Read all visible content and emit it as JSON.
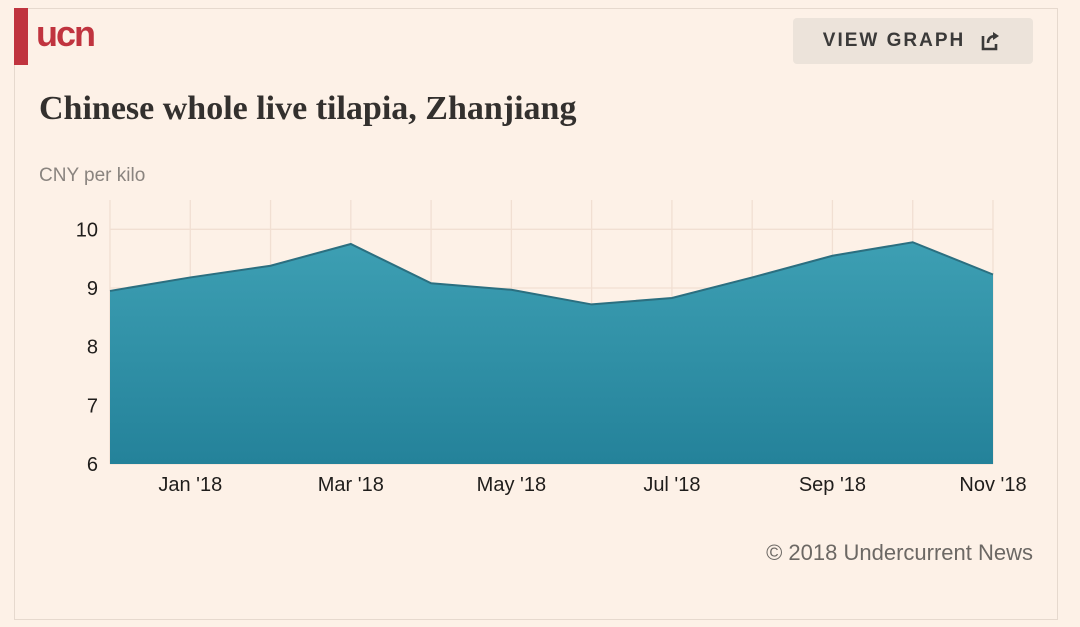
{
  "brand": {
    "logo_text": "ucn",
    "accent_color": "#c0343f"
  },
  "header": {
    "view_graph_label": "VIEW GRAPH",
    "view_graph_icon": "external-link-icon"
  },
  "title": "Chinese whole live tilapia, Zhanjiang",
  "y_unit": "CNY per kilo",
  "footer": {
    "copyright": "© 2018 Undercurrent News"
  },
  "chart_data": {
    "type": "area",
    "title": "Chinese whole live tilapia, Zhanjiang",
    "ylabel": "CNY per kilo",
    "xlabel": "",
    "x": [
      "2017-12",
      "2018-01",
      "2018-02",
      "2018-03",
      "2018-04",
      "2018-05",
      "2018-06",
      "2018-07",
      "2018-08",
      "2018-09",
      "2018-10",
      "2018-11"
    ],
    "values": [
      8.95,
      9.18,
      9.38,
      9.75,
      9.08,
      8.97,
      8.72,
      8.83,
      9.18,
      9.55,
      9.78,
      9.23
    ],
    "x_tick_labels": [
      "Jan '18",
      "Mar '18",
      "May '18",
      "Jul '18",
      "Sep '18",
      "Nov '18"
    ],
    "x_tick_positions": [
      "2018-01",
      "2018-03",
      "2018-05",
      "2018-07",
      "2018-09",
      "2018-11"
    ],
    "y_ticks": [
      6,
      7,
      8,
      9,
      10
    ],
    "ylim": [
      6,
      10.5
    ],
    "grid": true,
    "fill_color": "#2a8ba0",
    "line_color": "#2b6f80"
  }
}
